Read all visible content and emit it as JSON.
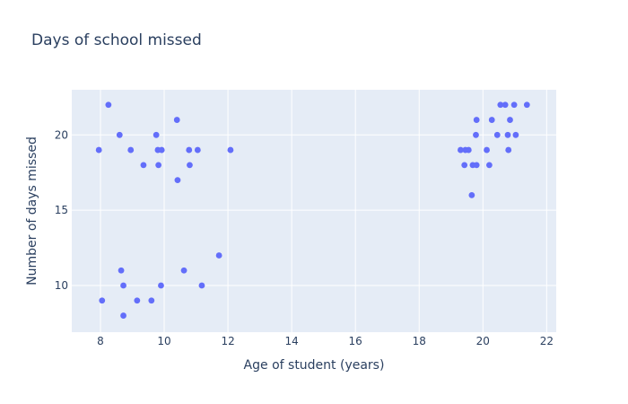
{
  "chart_data": {
    "type": "scatter",
    "title": "Days of school missed",
    "xlabel": "Age of student (years)",
    "ylabel": "Number of days missed",
    "xlim": [
      7.1,
      22.3
    ],
    "ylim": [
      6.9,
      23.0
    ],
    "xticks": [
      8,
      10,
      12,
      14,
      16,
      18,
      20,
      22
    ],
    "xtick_labels": [
      "8",
      "10",
      "12",
      "14",
      "16",
      "18",
      "20",
      "22"
    ],
    "yticks": [
      10,
      15,
      20
    ],
    "ytick_labels": [
      "10",
      "15",
      "20"
    ],
    "grid": true,
    "colors": {
      "marker": "#636efa",
      "plot_bg": "#e5ecf6",
      "grid": "#ffffff",
      "text": "#2a3f5f"
    },
    "points": [
      {
        "x": 7.95,
        "y": 19
      },
      {
        "x": 8.25,
        "y": 22
      },
      {
        "x": 8.6,
        "y": 20
      },
      {
        "x": 8.95,
        "y": 19
      },
      {
        "x": 9.35,
        "y": 18
      },
      {
        "x": 9.75,
        "y": 20
      },
      {
        "x": 9.8,
        "y": 19
      },
      {
        "x": 9.82,
        "y": 18
      },
      {
        "x": 9.92,
        "y": 19
      },
      {
        "x": 10.4,
        "y": 21
      },
      {
        "x": 10.42,
        "y": 17
      },
      {
        "x": 10.78,
        "y": 19
      },
      {
        "x": 10.8,
        "y": 18
      },
      {
        "x": 11.05,
        "y": 19
      },
      {
        "x": 12.08,
        "y": 19
      },
      {
        "x": 8.05,
        "y": 9
      },
      {
        "x": 8.65,
        "y": 11
      },
      {
        "x": 8.72,
        "y": 10
      },
      {
        "x": 8.72,
        "y": 8
      },
      {
        "x": 9.15,
        "y": 9
      },
      {
        "x": 9.6,
        "y": 9
      },
      {
        "x": 9.9,
        "y": 10
      },
      {
        "x": 10.62,
        "y": 11
      },
      {
        "x": 11.18,
        "y": 10
      },
      {
        "x": 11.72,
        "y": 12
      },
      {
        "x": 19.3,
        "y": 19
      },
      {
        "x": 19.42,
        "y": 18
      },
      {
        "x": 19.45,
        "y": 19
      },
      {
        "x": 19.55,
        "y": 19
      },
      {
        "x": 19.65,
        "y": 16
      },
      {
        "x": 19.68,
        "y": 18
      },
      {
        "x": 19.78,
        "y": 20
      },
      {
        "x": 19.8,
        "y": 21
      },
      {
        "x": 19.8,
        "y": 18
      },
      {
        "x": 20.12,
        "y": 19
      },
      {
        "x": 20.2,
        "y": 18
      },
      {
        "x": 20.28,
        "y": 21
      },
      {
        "x": 20.45,
        "y": 20
      },
      {
        "x": 20.55,
        "y": 22
      },
      {
        "x": 20.7,
        "y": 22
      },
      {
        "x": 20.78,
        "y": 20
      },
      {
        "x": 20.8,
        "y": 19
      },
      {
        "x": 20.85,
        "y": 21
      },
      {
        "x": 20.98,
        "y": 22
      },
      {
        "x": 21.03,
        "y": 20
      },
      {
        "x": 21.38,
        "y": 22
      }
    ]
  }
}
